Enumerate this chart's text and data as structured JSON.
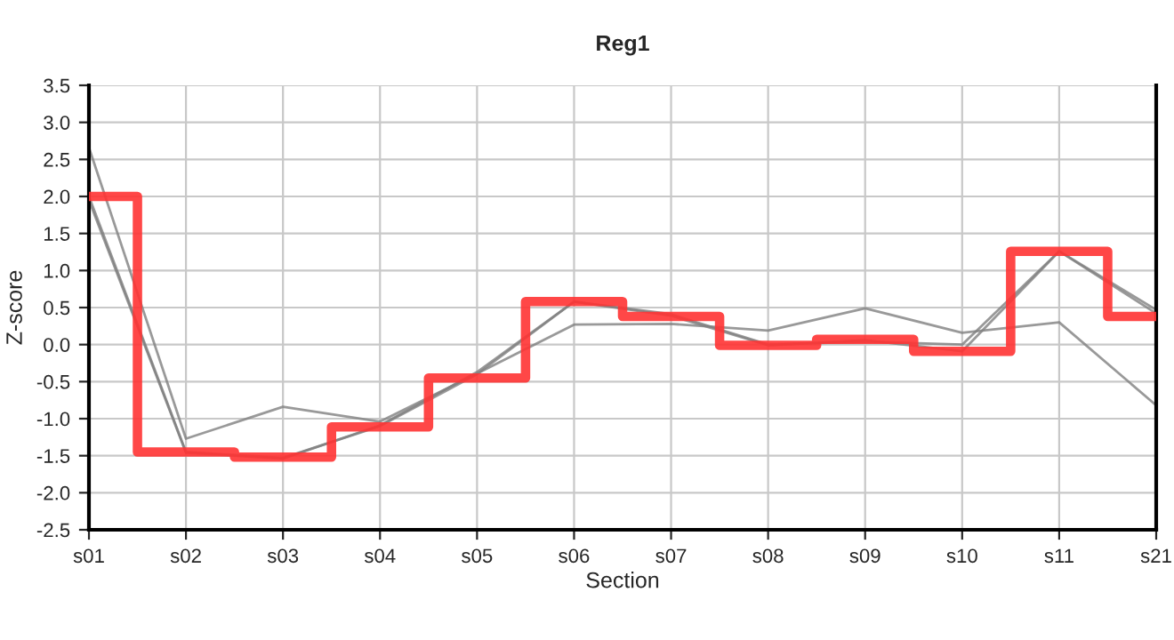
{
  "chart_data": {
    "type": "step",
    "title": "Reg1",
    "xlabel": "Section",
    "ylabel": "Z-score",
    "categories": [
      "s01",
      "s02",
      "s03",
      "s04",
      "s05",
      "s06",
      "s07",
      "s08",
      "s09",
      "s10",
      "s11",
      "s21"
    ],
    "series": [
      {
        "type": "line",
        "color": "#808080",
        "values": [
          2.66,
          -1.27,
          -0.84,
          -1.04,
          -0.39,
          0.27,
          0.28,
          0.19,
          0.49,
          0.16,
          0.3,
          -0.82
        ]
      },
      {
        "type": "line",
        "color": "#808080",
        "values": [
          1.95,
          -1.46,
          -1.54,
          -1.09,
          -0.37,
          0.58,
          0.41,
          0.0,
          0.04,
          0.0,
          1.26,
          0.47
        ]
      },
      {
        "type": "line",
        "color": "#808080",
        "values": [
          2.0,
          -1.45,
          -1.53,
          -1.1,
          -0.4,
          0.58,
          0.39,
          -0.01,
          0.06,
          -0.09,
          1.26,
          0.42
        ]
      },
      {
        "color": "#ff3333",
        "values": [
          2.0,
          -1.45,
          -1.52,
          -1.11,
          -0.45,
          0.58,
          0.38,
          -0.01,
          0.07,
          -0.09,
          1.26,
          0.38
        ]
      }
    ],
    "ylim": [
      -2.5,
      3.5
    ],
    "yticks": [
      -2.5,
      {
        "value": -2,
        "label": "-2.0"
      },
      -1.5,
      {
        "value": -1,
        "label": "-1.0"
      },
      -0.5,
      {
        "value": 0,
        "label": "0.0"
      },
      0.5,
      {
        "value": 1,
        "label": "1.0"
      },
      1.5,
      {
        "value": 2,
        "label": "2.0"
      },
      2.5,
      {
        "value": 3,
        "label": "3.0"
      },
      3.5
    ],
    "grid": true,
    "marker": "none",
    "line_style": "solid"
  }
}
